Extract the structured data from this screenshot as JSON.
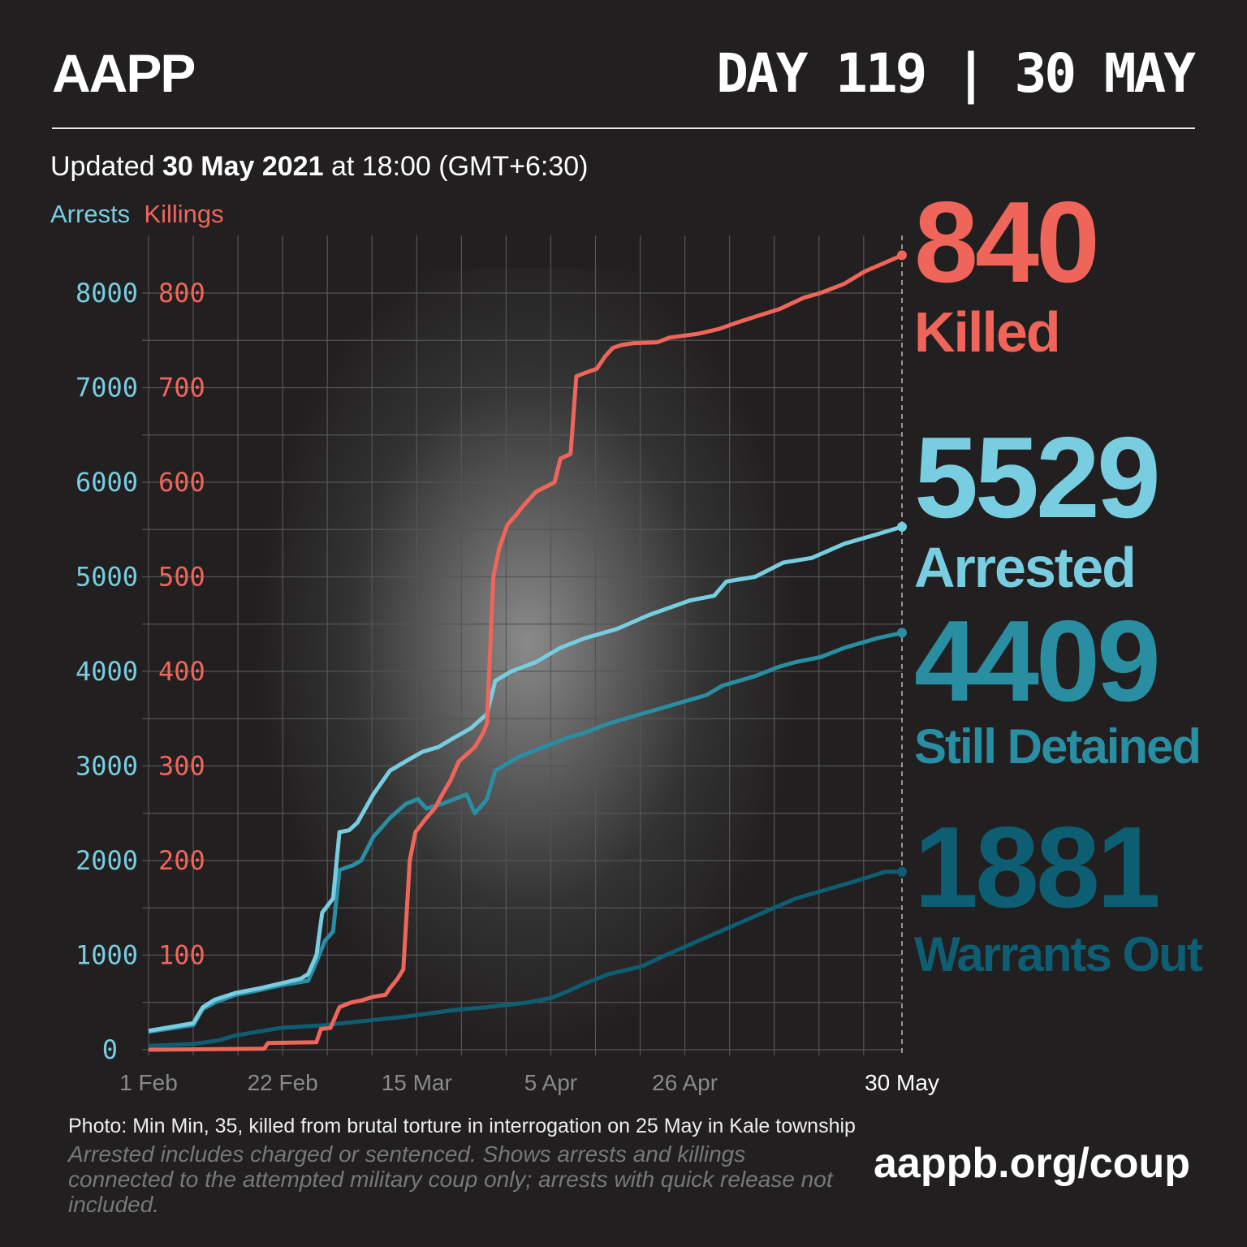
{
  "header": {
    "logo": "AAPP",
    "day_label": "DAY 119 | 30 MAY"
  },
  "updated": {
    "prefix": "Updated ",
    "date": "30 May 2021",
    "suffix": " at 18:00 (GMT+6:30)"
  },
  "legend": {
    "arrests": "Arrests",
    "killings": "Killings"
  },
  "colors": {
    "killed": "#f0655a",
    "arrested": "#78cde0",
    "detained": "#2a8ea3",
    "warrants": "#0e5e73",
    "bg": "#221f20"
  },
  "stats": [
    {
      "value": "840",
      "label": "Killed"
    },
    {
      "value": "5529",
      "label": "Arrested"
    },
    {
      "value": "4409",
      "label": "Still Detained"
    },
    {
      "value": "1881",
      "label": "Warrants Out"
    }
  ],
  "chart_data": {
    "type": "line",
    "xlabel": "",
    "ylabel_left_arrests": "Arrests",
    "ylabel_left_killings": "Killings",
    "x_unit": "days since 1 Feb 2021",
    "xlim": [
      0,
      118
    ],
    "x_ticks": [
      {
        "day": 0,
        "label": "1 Feb"
      },
      {
        "day": 21,
        "label": "22 Feb"
      },
      {
        "day": 42,
        "label": "15 Mar"
      },
      {
        "day": 63,
        "label": "5 Apr"
      },
      {
        "day": 84,
        "label": "26 Apr"
      },
      {
        "day": 118,
        "label": "30 May"
      }
    ],
    "y_arrests_ticks": [
      "0",
      "1000",
      "2000",
      "3000",
      "4000",
      "5000",
      "6000",
      "7000",
      "8000"
    ],
    "y_killings_ticks": [
      "100",
      "200",
      "300",
      "400",
      "500",
      "600",
      "700",
      "800"
    ],
    "ylim_arrests": [
      0,
      8000
    ],
    "ylim_killings": [
      0,
      800
    ],
    "grid": true,
    "series": [
      {
        "name": "Warrants Out",
        "axis": "arrests",
        "color": "#0e5e73",
        "x": [
          0,
          7,
          11.1,
          13.6,
          20.6,
          27.6,
          40.3,
          47.9,
          53,
          59.4,
          63.2,
          65.7,
          68.3,
          72.1,
          77.2,
          81,
          86.1,
          91.2,
          96.3,
          101.4,
          106.5,
          111.6,
          115.3,
          118
        ],
        "y": [
          40,
          60,
          100,
          150,
          230,
          260,
          350,
          420,
          450,
          500,
          550,
          620,
          700,
          800,
          880,
          1000,
          1150,
          1300,
          1450,
          1600,
          1700,
          1800,
          1881,
          1881
        ]
      },
      {
        "name": "Still Detained",
        "axis": "arrests",
        "color": "#2a8ea3",
        "x": [
          0,
          7,
          8.5,
          10.4,
          13.6,
          17.4,
          20.6,
          25,
          26.3,
          27.6,
          28.9,
          29.9,
          32,
          33.3,
          35.2,
          37.8,
          40.3,
          42.2,
          43.5,
          46,
          49.8,
          51.1,
          52.4,
          53,
          54.3,
          58.1,
          61.9,
          65.7,
          68.3,
          72.1,
          77.2,
          82.3,
          87.4,
          89.9,
          95,
          98.8,
          101.4,
          105.2,
          109,
          114.1,
          118
        ],
        "y": [
          190,
          260,
          430,
          500,
          580,
          630,
          680,
          730,
          930,
          1150,
          1250,
          1900,
          1950,
          2000,
          2250,
          2450,
          2600,
          2650,
          2550,
          2600,
          2700,
          2500,
          2600,
          2650,
          2950,
          3100,
          3200,
          3300,
          3350,
          3450,
          3550,
          3650,
          3750,
          3850,
          3950,
          4050,
          4100,
          4150,
          4250,
          4350,
          4409
        ]
      },
      {
        "name": "Arrested",
        "axis": "arrests",
        "color": "#78cde0",
        "x": [
          0,
          7,
          8.5,
          10.4,
          13.6,
          17.4,
          20.6,
          23.8,
          25,
          26.3,
          27.2,
          28.9,
          29.9,
          31.4,
          32.7,
          35.2,
          37.8,
          40.3,
          42.9,
          45.4,
          47.9,
          50.5,
          53,
          54.3,
          56.8,
          60.7,
          64.5,
          68.3,
          73.4,
          78.5,
          84.8,
          88.6,
          90.5,
          95,
          99.4,
          103.9,
          109,
          114.1,
          118
        ],
        "y": [
          200,
          280,
          450,
          530,
          600,
          650,
          700,
          750,
          800,
          1000,
          1450,
          1600,
          2300,
          2320,
          2400,
          2700,
          2950,
          3050,
          3150,
          3200,
          3300,
          3400,
          3550,
          3900,
          4000,
          4100,
          4250,
          4350,
          4450,
          4600,
          4750,
          4800,
          4950,
          5000,
          5150,
          5200,
          5350,
          5450,
          5529
        ]
      },
      {
        "name": "Killed",
        "axis": "killings",
        "color": "#f0655a",
        "x": [
          0,
          18.1,
          18.7,
          26.3,
          27,
          28.5,
          29.9,
          31.7,
          33.3,
          35.2,
          37.1,
          37.8,
          39,
          39.9,
          40.9,
          41.8,
          43.5,
          44.8,
          46,
          47.3,
          48.6,
          49.8,
          51.1,
          52.4,
          53,
          54,
          54.9,
          56.2,
          57.5,
          58.7,
          60.7,
          63.6,
          64.5,
          66.1,
          67,
          68.9,
          70.2,
          71.5,
          72.7,
          74,
          75.9,
          79.7,
          81.6,
          86.1,
          89.3,
          91.8,
          95,
          98.8,
          102.6,
          105.2,
          109,
          112.2,
          115.3,
          118
        ],
        "y": [
          0,
          1,
          7,
          8,
          22,
          23,
          45,
          50,
          52,
          56,
          58,
          65,
          75,
          85,
          200,
          230,
          245,
          255,
          270,
          285,
          305,
          312,
          320,
          335,
          345,
          500,
          530,
          555,
          565,
          575,
          590,
          600,
          625,
          630,
          712,
          717,
          720,
          733,
          742,
          745,
          747,
          748,
          753,
          757,
          762,
          768,
          775,
          783,
          795,
          800,
          810,
          823,
          832,
          840
        ]
      }
    ]
  },
  "footer": {
    "photo_caption": "Photo: Min Min, 35, killed from brutal torture in interrogation on 25 May in Kale township",
    "note": "Arrested includes charged or sentenced. Shows arrests and killings connected to the attempted military coup only; arrests with quick release not included.",
    "url": "aappb.org/coup"
  }
}
